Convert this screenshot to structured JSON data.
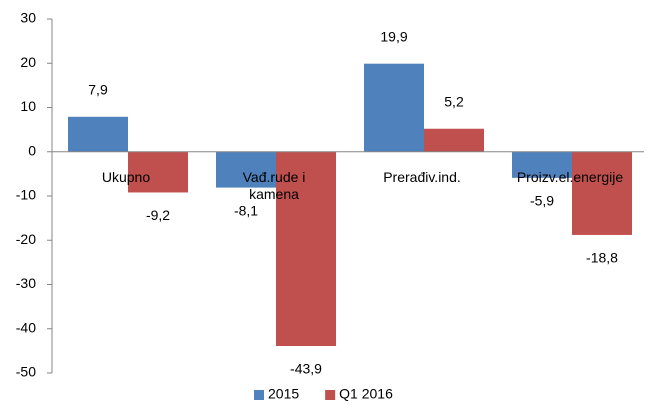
{
  "chart_data": {
    "type": "bar",
    "categories": [
      "Ukupno",
      "Vađ.rude i kamena",
      "Prerađiv.ind.",
      "Proizv.el.energije"
    ],
    "series": [
      {
        "name": "2015",
        "color": "#4f81bd",
        "values": [
          7.9,
          -8.1,
          19.9,
          -5.9
        ],
        "value_labels": [
          "7,9",
          "-8,1",
          "19,9",
          "-5,9"
        ]
      },
      {
        "name": "Q1 2016",
        "color": "#c0504d",
        "values": [
          -9.2,
          -43.9,
          5.2,
          -18.8
        ],
        "value_labels": [
          "-9,2",
          "-43,9",
          "5,2",
          "-18,8"
        ]
      }
    ],
    "ylim": [
      -50,
      30
    ],
    "yticks": [
      -50,
      -40,
      -30,
      -20,
      -10,
      0,
      10,
      20,
      30
    ],
    "legend": "bottom",
    "grid": false
  }
}
